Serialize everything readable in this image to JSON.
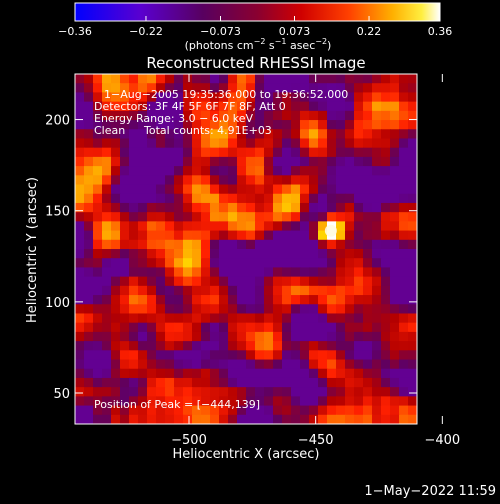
{
  "chart_data": {
    "type": "heatmap",
    "title": "Reconstructed RHESSI Image",
    "xlabel": "Heliocentric X (arcsec)",
    "ylabel": "Heliocentric Y (arcsec)",
    "xlim": [
      -545,
      -410
    ],
    "ylim": [
      33,
      225
    ],
    "x_ticks": [
      -500,
      -450,
      -400
    ],
    "y_ticks": [
      50,
      100,
      150,
      200
    ],
    "x_tick_labels": [
      "−500",
      "−450",
      "−400"
    ],
    "y_tick_labels": [
      "50",
      "100",
      "150",
      "200"
    ],
    "colorbar": {
      "min": -0.36,
      "max": 0.36,
      "ticks": [
        -0.36,
        -0.22,
        -0.073,
        0.073,
        0.22,
        0.36
      ],
      "tick_labels": [
        "−0.36",
        "−0.22",
        "−0.073",
        "0.073",
        "0.22",
        "0.36"
      ],
      "unit_base": "(photons cm",
      "unit_exp1": "−2",
      "unit_mid1": " s",
      "unit_exp2": "−1",
      "unit_mid2": " asec",
      "unit_exp3": "−2",
      "unit_end": ")"
    },
    "annotations": {
      "time_range": "1−Aug−2005 19:35:36.000 to 19:36:52.000",
      "detectors": "Detectors: 3F 4F 5F 6F 7F 8F, Att 0",
      "energy": "Energy Range: 3.0 − 6.0 keV",
      "method": "Clean",
      "counts": "Total counts: 4.91E+03",
      "peak": "Position of Peak = [−444,139]"
    },
    "peak": {
      "x": -444,
      "y": 139,
      "value": 0.36
    }
  },
  "footer": {
    "timestamp": "1−May−2022 11:59"
  },
  "colors": {
    "background": "#000000",
    "colormap": [
      "#0000ff",
      "#6600cc",
      "#600060",
      "#b40000",
      "#ff2000",
      "#ff9000",
      "#ffe000",
      "#ffffff"
    ]
  }
}
